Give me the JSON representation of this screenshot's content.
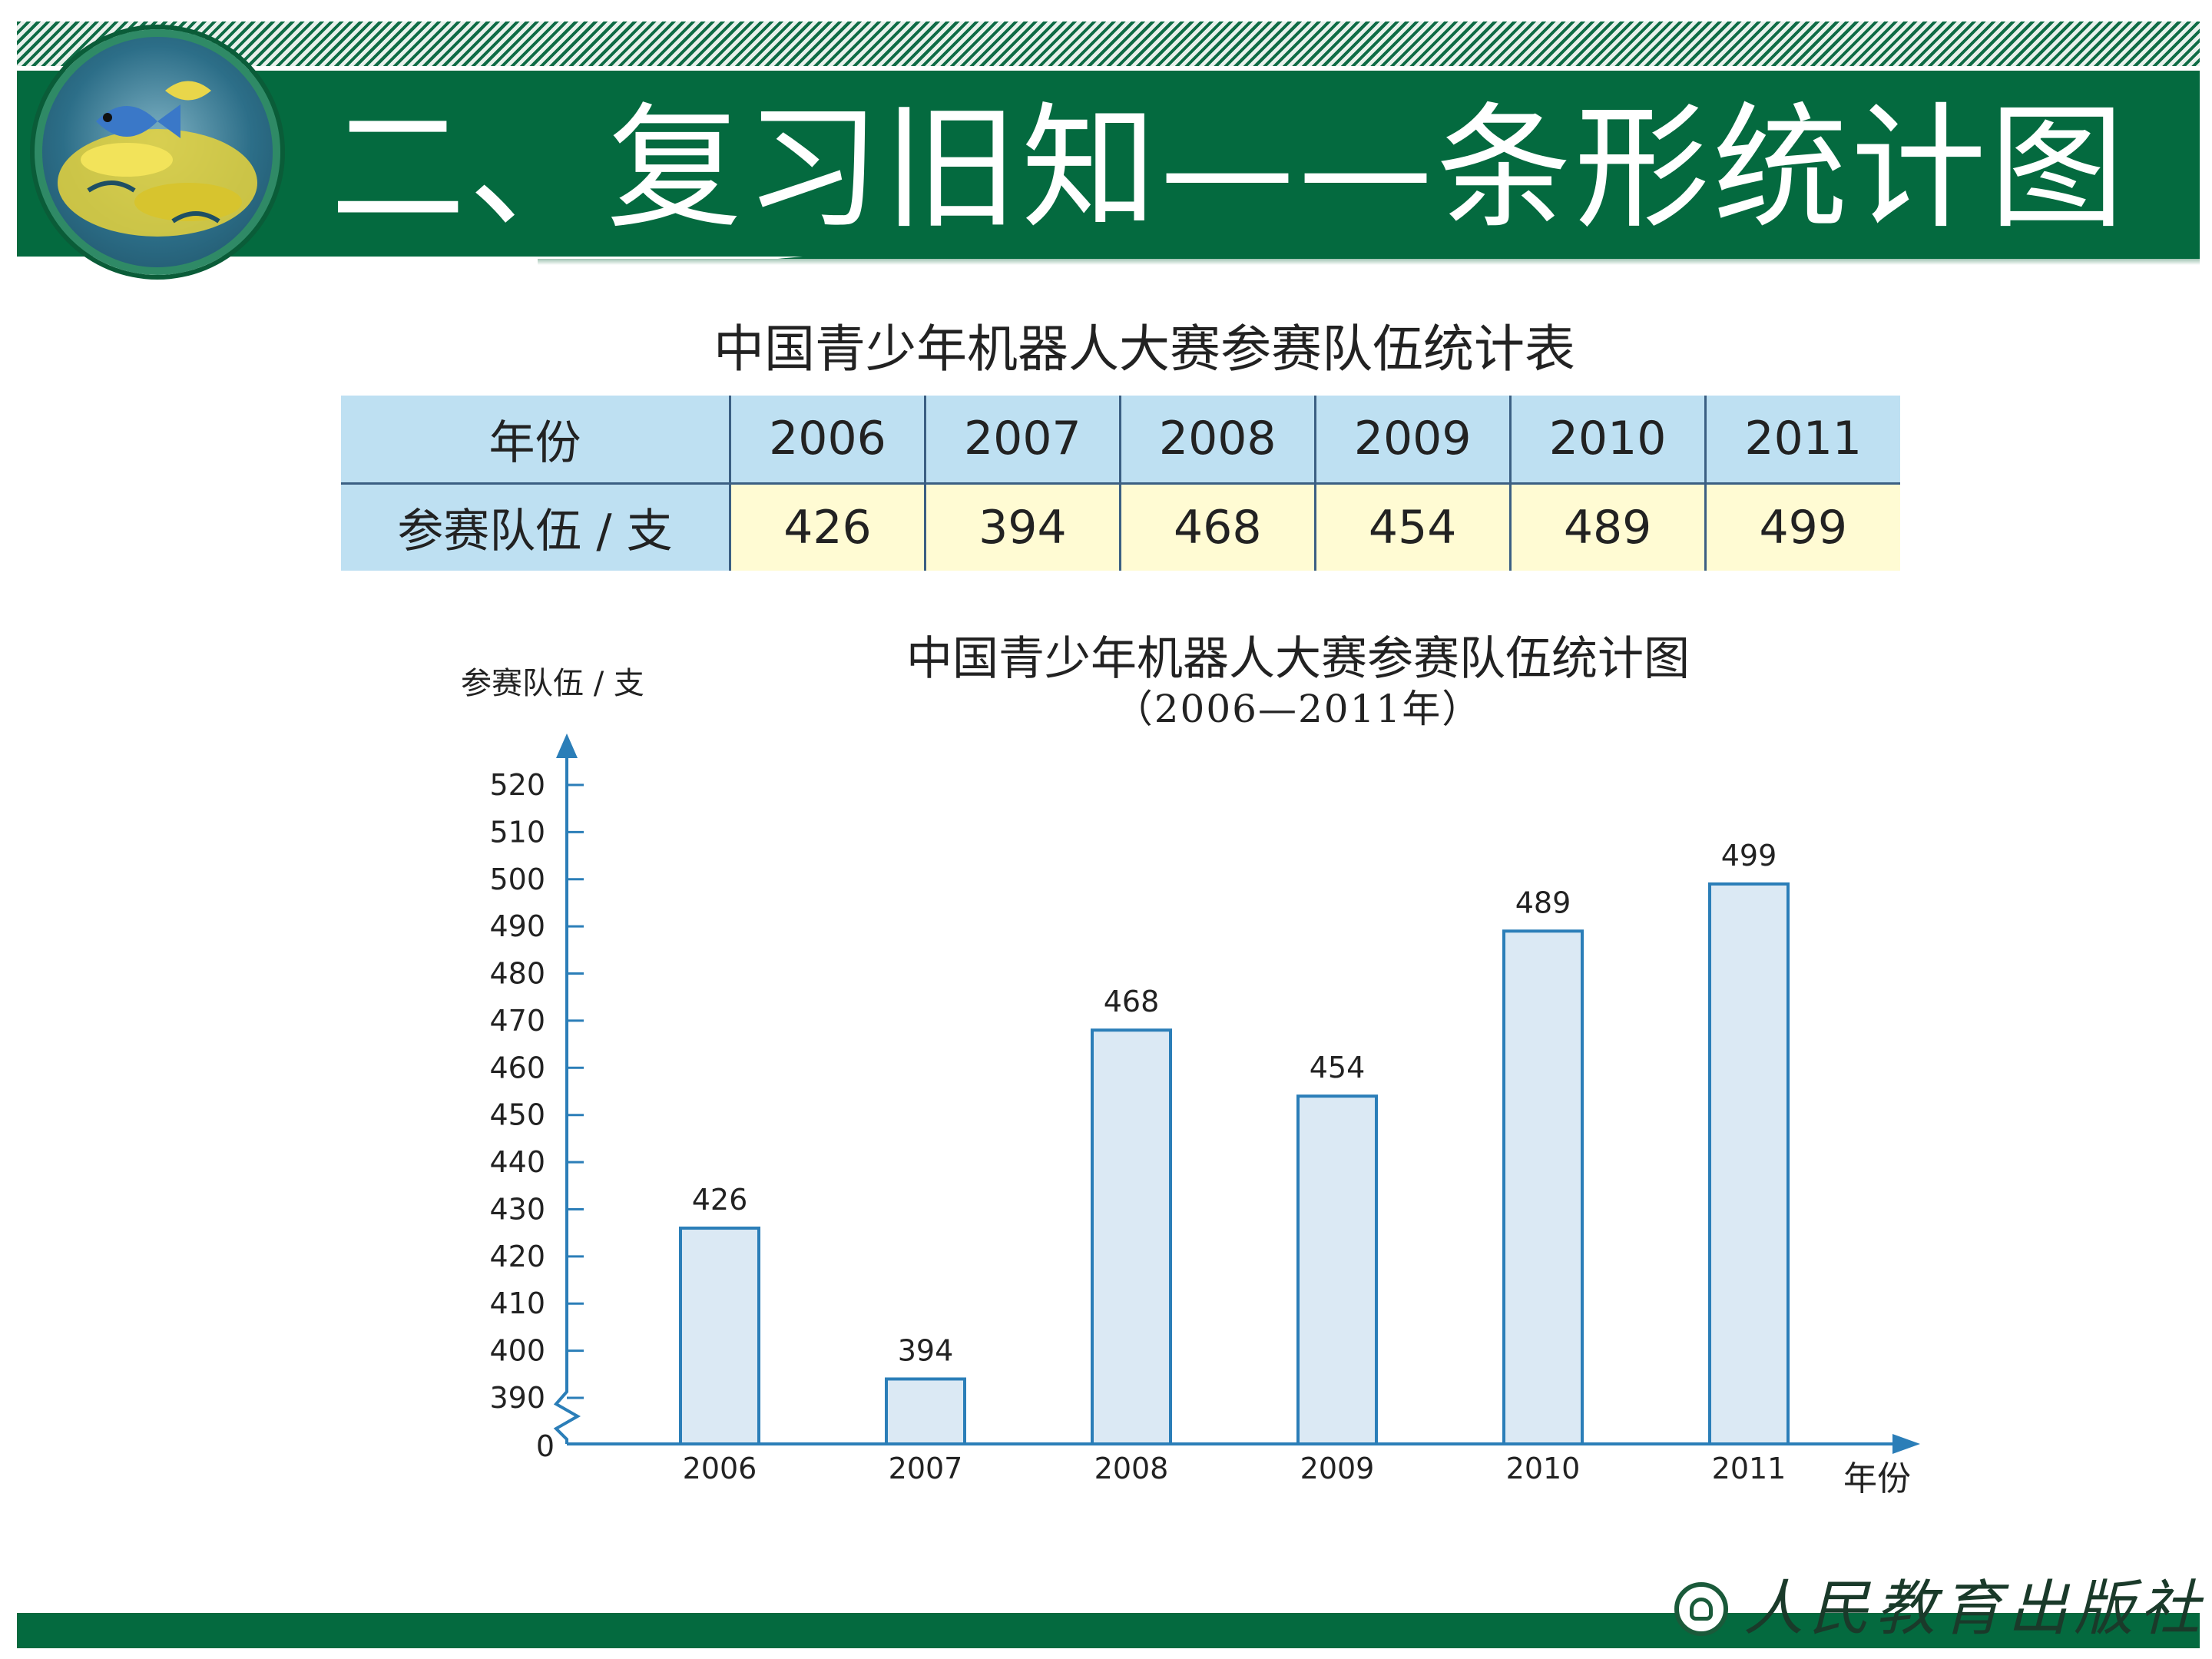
{
  "slide": {
    "title": "二、复习旧知——条形统计图",
    "publisher": "人民教育出版社"
  },
  "colors": {
    "header_green": "#046a3f",
    "table_header_blue": "#bee0f2",
    "table_value_yellow": "#fffbd3",
    "bar_fill": "#dbe9f4",
    "bar_stroke": "#2b7eb8",
    "axis": "#2b7eb8"
  },
  "table": {
    "title": "中国青少年机器人大赛参赛队伍统计表",
    "row_headers": [
      "年份",
      "参赛队伍 / 支"
    ],
    "years": [
      "2006",
      "2007",
      "2008",
      "2009",
      "2010",
      "2011"
    ],
    "values": [
      "426",
      "394",
      "468",
      "454",
      "489",
      "499"
    ]
  },
  "chart_data": {
    "type": "bar",
    "title": "中国青少年机器人大赛参赛队伍统计图",
    "subtitle": "（2006—2011年）",
    "ylabel": "参赛队伍 / 支",
    "xlabel": "年份",
    "categories": [
      "2006",
      "2007",
      "2008",
      "2009",
      "2010",
      "2011"
    ],
    "values": [
      426,
      394,
      468,
      454,
      489,
      499
    ],
    "data_labels": [
      "426",
      "394",
      "468",
      "454",
      "489",
      "499"
    ],
    "yticks": [
      390,
      400,
      410,
      420,
      430,
      440,
      450,
      460,
      470,
      480,
      490,
      500,
      510,
      520
    ],
    "y_origin_label": "0",
    "y_axis_break": true,
    "ylim": [
      385,
      520
    ],
    "grid": false,
    "legend": "none"
  }
}
